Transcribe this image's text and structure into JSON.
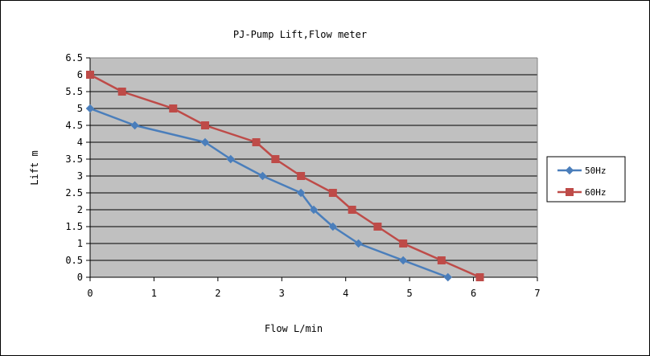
{
  "chart_data": {
    "type": "line",
    "title": "PJ-Pump Lift,Flow meter",
    "xlabel": "Flow L/min",
    "ylabel": "Lift m",
    "xlim": [
      0,
      7
    ],
    "ylim": [
      0,
      6.5
    ],
    "x_ticks": [
      "0",
      "1",
      "2",
      "3",
      "4",
      "5",
      "6",
      "7"
    ],
    "y_ticks": [
      "0",
      "0.5",
      "1",
      "1.5",
      "2",
      "2.5",
      "3",
      "3.5",
      "4",
      "4.5",
      "5",
      "5.5",
      "6",
      "6.5"
    ],
    "grid": "horizontal",
    "plot_background": "#c0c0c0",
    "legend_position": "right",
    "series": [
      {
        "name": "50Hz",
        "color": "#4a7ebb",
        "marker": "diamond",
        "x": [
          0,
          0.7,
          1.8,
          2.2,
          2.7,
          3.3,
          3.5,
          3.8,
          4.2,
          4.9,
          5.6
        ],
        "y": [
          5,
          4.5,
          4,
          3.5,
          3,
          2.5,
          2,
          1.5,
          1,
          0.5,
          0
        ]
      },
      {
        "name": "60Hz",
        "color": "#be4b48",
        "marker": "square",
        "x": [
          0,
          0.5,
          1.3,
          1.8,
          2.6,
          2.9,
          3.3,
          3.8,
          4.1,
          4.5,
          4.9,
          5.5,
          6.1
        ],
        "y": [
          6,
          5.5,
          5,
          4.5,
          4,
          3.5,
          3,
          2.5,
          2,
          1.5,
          1,
          0.5,
          0
        ]
      }
    ]
  }
}
